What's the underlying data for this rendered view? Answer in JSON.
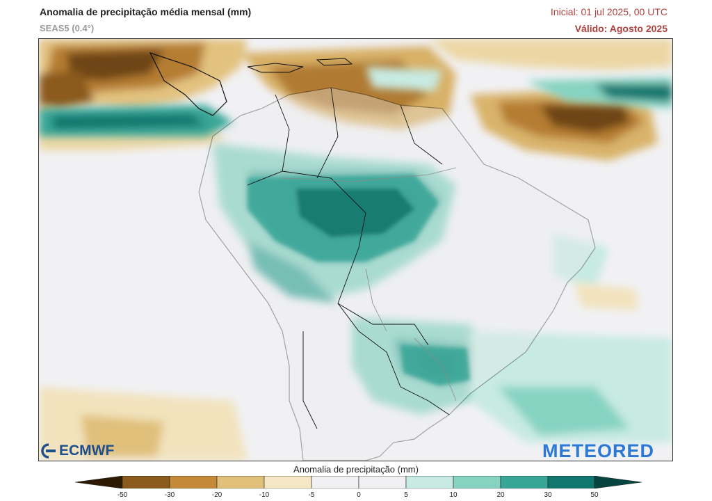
{
  "header": {
    "title": "Anomalia de precipitação média mensal (mm)",
    "model": "SEAS5 (0.4°)",
    "initial": "Inicial: 01 jul 2025, 00 UTC",
    "valid": "Válido: Agosto 2025"
  },
  "logos": {
    "left": "ECMWF",
    "right": "METEORED"
  },
  "legend": {
    "title": "Anomalia de precipitação (mm)",
    "ticks": [
      "-50",
      "-30",
      "-20",
      "-10",
      "-5",
      "0",
      "5",
      "10",
      "20",
      "30",
      "50"
    ],
    "colors": [
      "#5a3206",
      "#8b5a1c",
      "#c48a3a",
      "#e0c07a",
      "#f5e6c4",
      "#f1f1f4",
      "#f1f1f4",
      "#c7eae2",
      "#86d3c2",
      "#37a697",
      "#11766d",
      "#06453f"
    ]
  },
  "map_colors": {
    "ocean_neutral": "#f1f1f4",
    "land": "#ececee",
    "border": "#111111",
    "river": "#8a8a8a"
  }
}
